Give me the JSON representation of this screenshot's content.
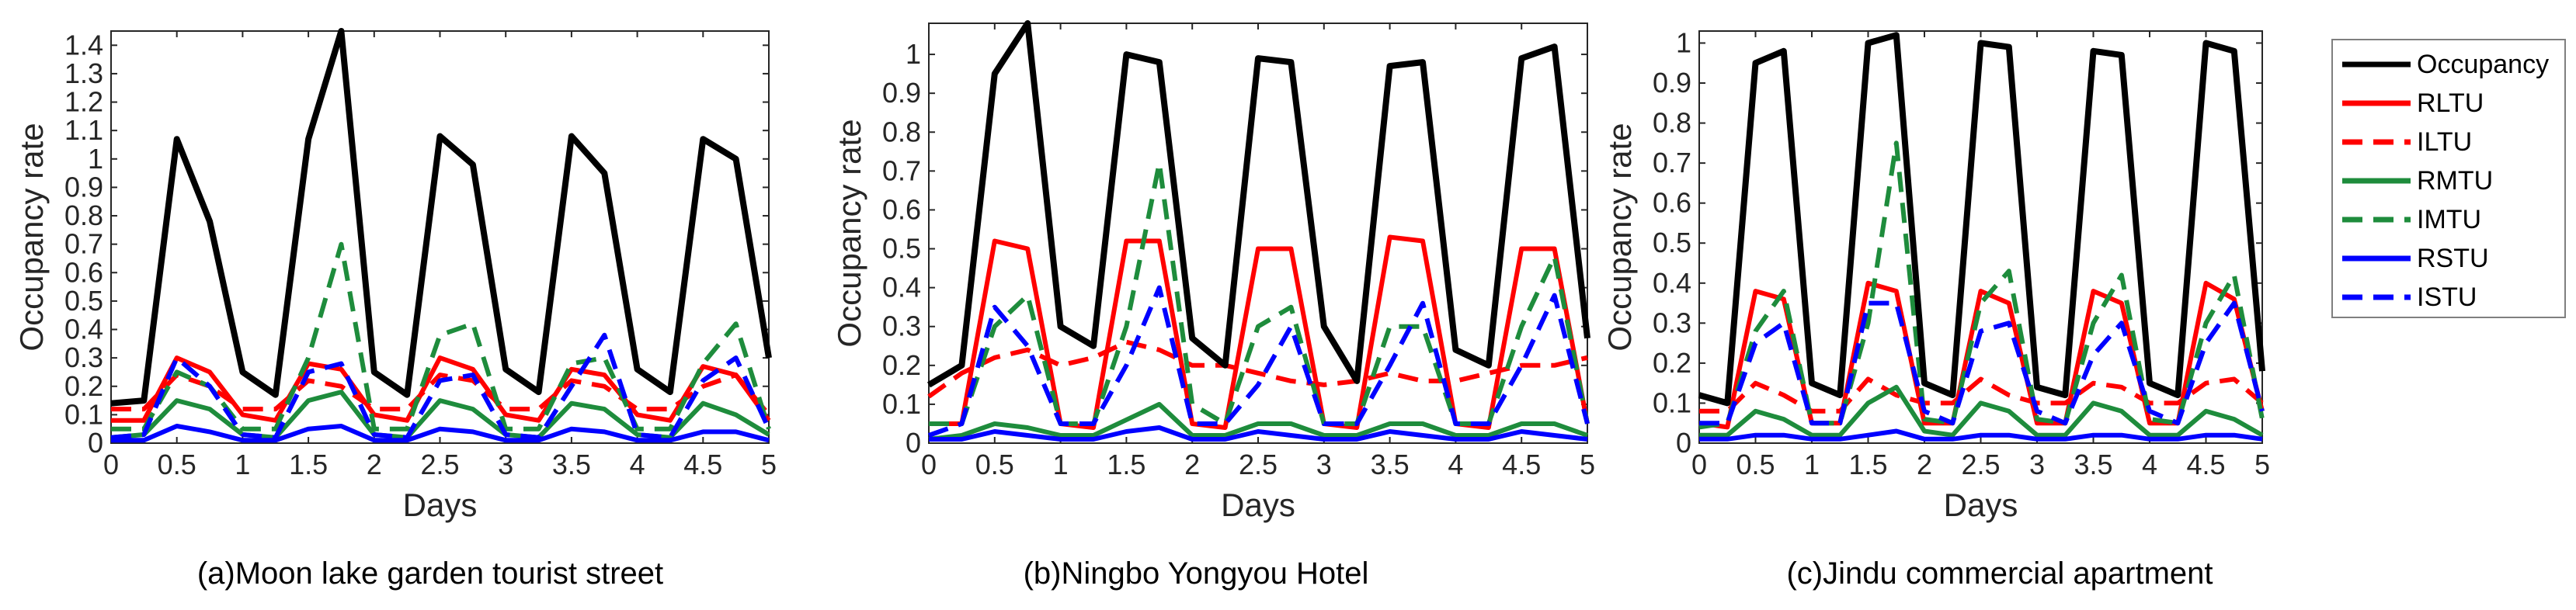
{
  "legend": {
    "items": [
      {
        "label": "Occupancy",
        "color": "#000000",
        "dash": "solid"
      },
      {
        "label": "RLTU",
        "color": "#ff0000",
        "dash": "solid"
      },
      {
        "label": "ILTU",
        "color": "#ff0000",
        "dash": "dashed"
      },
      {
        "label": "RMTU",
        "color": "#1e8c3c",
        "dash": "solid"
      },
      {
        "label": "IMTU",
        "color": "#1e8c3c",
        "dash": "dashed"
      },
      {
        "label": "RSTU",
        "color": "#0000ff",
        "dash": "solid"
      },
      {
        "label": "ISTU",
        "color": "#0000ff",
        "dash": "dashed"
      }
    ]
  },
  "captions": {
    "a": "(a)Moon lake garden tourist street",
    "b": "(b)Ningbo Yongyou Hotel",
    "c": "(c)Jindu commercial apartment"
  },
  "chart_data": [
    {
      "type": "line",
      "caption": "(a)Moon lake garden tourist street",
      "xlabel": "Days",
      "ylabel": "Occupancy rate",
      "xlim": [
        0,
        5
      ],
      "ylim": [
        0,
        1.45
      ],
      "xticks": [
        0,
        0.5,
        1,
        1.5,
        2,
        2.5,
        3,
        3.5,
        4,
        4.5,
        5
      ],
      "yticks": [
        0,
        0.1,
        0.2,
        0.3,
        0.4,
        0.5,
        0.6,
        0.7,
        0.8,
        0.9,
        1,
        1.1,
        1.2,
        1.3,
        1.4
      ],
      "x": [
        0,
        0.25,
        0.5,
        0.75,
        1,
        1.25,
        1.5,
        1.75,
        2,
        2.25,
        2.5,
        2.75,
        3,
        3.25,
        3.5,
        3.75,
        4,
        4.25,
        4.5,
        4.75,
        5
      ],
      "series": [
        {
          "name": "Occupancy",
          "values": [
            0.14,
            0.15,
            1.07,
            0.78,
            0.25,
            0.17,
            1.07,
            1.45,
            0.25,
            0.17,
            1.08,
            0.98,
            0.26,
            0.18,
            1.08,
            0.95,
            0.26,
            0.18,
            1.07,
            1.0,
            0.3
          ]
        },
        {
          "name": "RLTU",
          "values": [
            0.08,
            0.08,
            0.3,
            0.25,
            0.1,
            0.08,
            0.28,
            0.26,
            0.1,
            0.08,
            0.3,
            0.26,
            0.1,
            0.08,
            0.26,
            0.24,
            0.1,
            0.08,
            0.27,
            0.24,
            0.08
          ]
        },
        {
          "name": "ILTU",
          "values": [
            0.12,
            0.12,
            0.24,
            0.2,
            0.12,
            0.12,
            0.22,
            0.2,
            0.12,
            0.12,
            0.24,
            0.22,
            0.12,
            0.12,
            0.22,
            0.2,
            0.12,
            0.12,
            0.2,
            0.24,
            0.1
          ]
        },
        {
          "name": "RMTU",
          "values": [
            0.02,
            0.03,
            0.15,
            0.12,
            0.03,
            0.02,
            0.15,
            0.18,
            0.03,
            0.02,
            0.15,
            0.12,
            0.03,
            0.02,
            0.14,
            0.12,
            0.03,
            0.02,
            0.14,
            0.1,
            0.03
          ]
        },
        {
          "name": "IMTU",
          "values": [
            0.05,
            0.05,
            0.25,
            0.2,
            0.05,
            0.05,
            0.3,
            0.7,
            0.05,
            0.05,
            0.38,
            0.42,
            0.05,
            0.05,
            0.28,
            0.3,
            0.05,
            0.05,
            0.28,
            0.42,
            0.05
          ]
        },
        {
          "name": "RSTU",
          "values": [
            0.01,
            0.01,
            0.06,
            0.04,
            0.01,
            0.01,
            0.05,
            0.06,
            0.01,
            0.01,
            0.05,
            0.04,
            0.01,
            0.01,
            0.05,
            0.04,
            0.01,
            0.01,
            0.04,
            0.04,
            0.01
          ]
        },
        {
          "name": "ISTU",
          "values": [
            0.02,
            0.03,
            0.3,
            0.2,
            0.03,
            0.02,
            0.25,
            0.28,
            0.03,
            0.02,
            0.22,
            0.24,
            0.03,
            0.02,
            0.2,
            0.38,
            0.03,
            0.02,
            0.22,
            0.3,
            0.05
          ]
        }
      ]
    },
    {
      "type": "line",
      "caption": "(b)Ningbo Yongyou Hotel",
      "xlabel": "Days",
      "ylabel": "Occupancy rate",
      "xlim": [
        0,
        5
      ],
      "ylim": [
        0,
        1.08
      ],
      "xticks": [
        0,
        0.5,
        1,
        1.5,
        2,
        2.5,
        3,
        3.5,
        4,
        4.5,
        5
      ],
      "yticks": [
        0,
        0.1,
        0.2,
        0.3,
        0.4,
        0.5,
        0.6,
        0.7,
        0.8,
        0.9,
        1
      ],
      "x": [
        0,
        0.25,
        0.5,
        0.75,
        1,
        1.25,
        1.5,
        1.75,
        2,
        2.25,
        2.5,
        2.75,
        3,
        3.25,
        3.5,
        3.75,
        4,
        4.25,
        4.5,
        4.75,
        5
      ],
      "series": [
        {
          "name": "Occupancy",
          "values": [
            0.15,
            0.2,
            0.95,
            1.08,
            0.3,
            0.25,
            1.0,
            0.98,
            0.27,
            0.2,
            0.99,
            0.98,
            0.3,
            0.16,
            0.97,
            0.98,
            0.24,
            0.2,
            0.99,
            1.02,
            0.27
          ]
        },
        {
          "name": "RLTU",
          "values": [
            0.05,
            0.05,
            0.52,
            0.5,
            0.05,
            0.04,
            0.52,
            0.52,
            0.05,
            0.04,
            0.5,
            0.5,
            0.05,
            0.04,
            0.53,
            0.52,
            0.05,
            0.04,
            0.5,
            0.5,
            0.05
          ]
        },
        {
          "name": "ILTU",
          "values": [
            0.12,
            0.18,
            0.22,
            0.24,
            0.2,
            0.22,
            0.26,
            0.24,
            0.2,
            0.2,
            0.18,
            0.16,
            0.15,
            0.16,
            0.18,
            0.16,
            0.16,
            0.18,
            0.2,
            0.2,
            0.22
          ]
        },
        {
          "name": "RMTU",
          "values": [
            0.01,
            0.02,
            0.05,
            0.04,
            0.02,
            0.02,
            0.06,
            0.1,
            0.02,
            0.02,
            0.05,
            0.05,
            0.02,
            0.02,
            0.05,
            0.05,
            0.02,
            0.02,
            0.05,
            0.05,
            0.02
          ]
        },
        {
          "name": "IMTU",
          "values": [
            0.05,
            0.05,
            0.3,
            0.38,
            0.05,
            0.05,
            0.3,
            0.72,
            0.1,
            0.05,
            0.3,
            0.35,
            0.05,
            0.05,
            0.3,
            0.3,
            0.05,
            0.05,
            0.3,
            0.48,
            0.05
          ]
        },
        {
          "name": "RSTU",
          "values": [
            0.01,
            0.01,
            0.03,
            0.02,
            0.01,
            0.01,
            0.03,
            0.04,
            0.01,
            0.01,
            0.03,
            0.02,
            0.01,
            0.01,
            0.03,
            0.02,
            0.01,
            0.01,
            0.03,
            0.02,
            0.01
          ]
        },
        {
          "name": "ISTU",
          "values": [
            0.02,
            0.05,
            0.35,
            0.25,
            0.05,
            0.05,
            0.2,
            0.4,
            0.05,
            0.05,
            0.15,
            0.3,
            0.05,
            0.05,
            0.2,
            0.36,
            0.05,
            0.05,
            0.2,
            0.38,
            0.05
          ]
        }
      ]
    },
    {
      "type": "line",
      "caption": "(c)Jindu commercial apartment",
      "xlabel": "Days",
      "ylabel": "Occupancy rate",
      "xlim": [
        0,
        5
      ],
      "ylim": [
        0,
        1.03
      ],
      "xticks": [
        0,
        0.5,
        1,
        1.5,
        2,
        2.5,
        3,
        3.5,
        4,
        4.5,
        5
      ],
      "yticks": [
        0,
        0.1,
        0.2,
        0.3,
        0.4,
        0.5,
        0.6,
        0.7,
        0.8,
        0.9,
        1
      ],
      "x": [
        0,
        0.25,
        0.5,
        0.75,
        1,
        1.25,
        1.5,
        1.75,
        2,
        2.25,
        2.5,
        2.75,
        3,
        3.25,
        3.5,
        3.75,
        4,
        4.25,
        4.5,
        4.75,
        5
      ],
      "series": [
        {
          "name": "Occupancy",
          "values": [
            0.12,
            0.1,
            0.95,
            0.98,
            0.15,
            0.12,
            1.0,
            1.02,
            0.15,
            0.12,
            1.0,
            0.99,
            0.14,
            0.12,
            0.98,
            0.97,
            0.15,
            0.12,
            1.0,
            0.98,
            0.18
          ]
        },
        {
          "name": "RLTU",
          "values": [
            0.05,
            0.04,
            0.38,
            0.36,
            0.05,
            0.05,
            0.4,
            0.38,
            0.05,
            0.05,
            0.38,
            0.35,
            0.05,
            0.05,
            0.38,
            0.35,
            0.05,
            0.05,
            0.4,
            0.36,
            0.08
          ]
        },
        {
          "name": "ILTU",
          "values": [
            0.08,
            0.08,
            0.15,
            0.12,
            0.08,
            0.08,
            0.16,
            0.12,
            0.1,
            0.1,
            0.16,
            0.12,
            0.1,
            0.1,
            0.15,
            0.14,
            0.1,
            0.1,
            0.15,
            0.16,
            0.1
          ]
        },
        {
          "name": "RMTU",
          "values": [
            0.02,
            0.02,
            0.08,
            0.06,
            0.02,
            0.02,
            0.1,
            0.14,
            0.03,
            0.02,
            0.1,
            0.08,
            0.02,
            0.02,
            0.1,
            0.08,
            0.02,
            0.02,
            0.08,
            0.06,
            0.02
          ]
        },
        {
          "name": "IMTU",
          "values": [
            0.04,
            0.05,
            0.28,
            0.38,
            0.05,
            0.05,
            0.3,
            0.75,
            0.06,
            0.05,
            0.35,
            0.43,
            0.06,
            0.05,
            0.3,
            0.42,
            0.06,
            0.05,
            0.3,
            0.42,
            0.06
          ]
        },
        {
          "name": "RSTU",
          "values": [
            0.01,
            0.01,
            0.02,
            0.02,
            0.01,
            0.01,
            0.02,
            0.03,
            0.01,
            0.01,
            0.02,
            0.02,
            0.01,
            0.01,
            0.02,
            0.02,
            0.01,
            0.01,
            0.02,
            0.02,
            0.01
          ]
        },
        {
          "name": "ISTU",
          "values": [
            0.05,
            0.05,
            0.25,
            0.3,
            0.05,
            0.05,
            0.35,
            0.35,
            0.08,
            0.05,
            0.28,
            0.3,
            0.08,
            0.05,
            0.22,
            0.3,
            0.08,
            0.05,
            0.25,
            0.35,
            0.08
          ]
        }
      ]
    }
  ]
}
